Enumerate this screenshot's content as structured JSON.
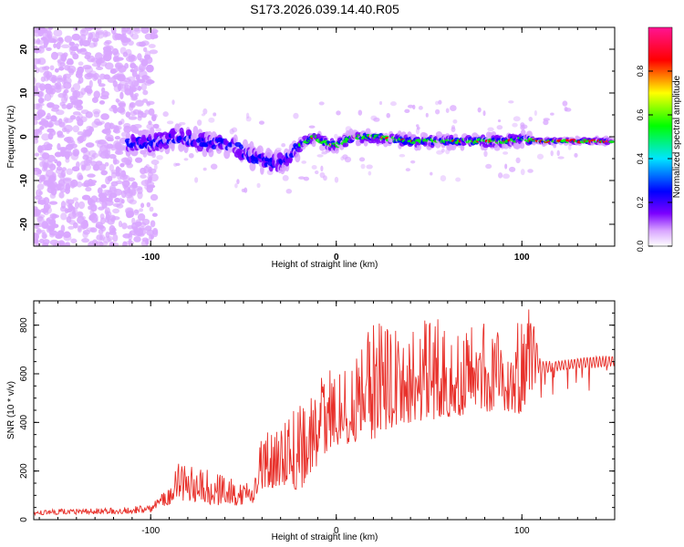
{
  "figure_title": "S173.2026.039.14.40.R05",
  "chart_data": [
    {
      "type": "heatmap",
      "title": "S173.2026.039.14.40.R05",
      "xlabel": "Height of straight line (km)",
      "ylabel": "Frequency (Hz)",
      "xlim": [
        -163,
        150
      ],
      "ylim": [
        -25,
        25
      ],
      "x_ticks": [
        -100,
        0,
        100
      ],
      "y_ticks": [
        -20,
        -10,
        0,
        10,
        20
      ],
      "colorbar": {
        "label": "Normalized spectral amplitude",
        "range": [
          0.0,
          1.0
        ],
        "ticks": [
          "0.0",
          "0.2",
          "0.4",
          "0.6",
          "0.8"
        ],
        "colors": [
          "#ffffff",
          "#d9a6ff",
          "#7b00ff",
          "#0000ff",
          "#00e5ff",
          "#00ff00",
          "#ffff00",
          "#ff0000",
          "#ff1493"
        ]
      },
      "ridge_line": {
        "x": [
          -113,
          -105,
          -95,
          -85,
          -75,
          -65,
          -55,
          -48,
          -42,
          -35,
          -28,
          -20,
          -12,
          -5,
          0,
          5,
          10,
          20,
          30,
          40,
          50,
          60,
          70,
          80,
          90,
          100,
          110,
          120,
          130,
          140,
          148
        ],
        "freq": [
          -1.5,
          -1.5,
          -1.0,
          0.0,
          -1.0,
          -1.5,
          -2.0,
          -4.0,
          -5.0,
          -6.0,
          -5.5,
          -2.0,
          0.0,
          -1.5,
          -2.0,
          -1.0,
          0.0,
          0.0,
          -0.5,
          -1.0,
          -1.0,
          -1.0,
          -1.0,
          -1.0,
          -1.0,
          -0.5,
          -1.0,
          -1.0,
          -1.0,
          -1.0,
          -1.0
        ]
      }
    },
    {
      "type": "line",
      "xlabel": "Height of straight line (km)",
      "ylabel": "SNR (10 * v/v)",
      "xlim": [
        -163,
        150
      ],
      "ylim": [
        0,
        900
      ],
      "x_ticks": [
        -100,
        0,
        100
      ],
      "y_ticks": [
        0,
        200,
        400,
        600,
        800
      ],
      "series": [
        {
          "name": "SNR",
          "color": "#e8302a",
          "envelope": {
            "x": [
              -163,
              -110,
              -100,
              -92,
              -85,
              -75,
              -65,
              -55,
              -45,
              -40,
              -30,
              -20,
              -10,
              -5,
              0,
              10,
              20,
              30,
              40,
              50,
              60,
              70,
              80,
              90,
              100,
              105,
              110,
              120,
              130,
              140,
              150
            ],
            "low": [
              20,
              25,
              30,
              55,
              80,
              70,
              60,
              55,
              60,
              120,
              140,
              120,
              200,
              280,
              300,
              320,
              330,
              380,
              400,
              410,
              420,
              430,
              440,
              450,
              430,
              560,
              580,
              600,
              610,
              610,
              620
            ],
            "high": [
              40,
              55,
              60,
              120,
              240,
              220,
              200,
              170,
              150,
              350,
              400,
              480,
              560,
              620,
              600,
              650,
              820,
              830,
              840,
              860,
              830,
              800,
              810,
              760,
              860,
              900,
              660,
              660,
              670,
              680,
              680
            ]
          }
        }
      ]
    }
  ]
}
